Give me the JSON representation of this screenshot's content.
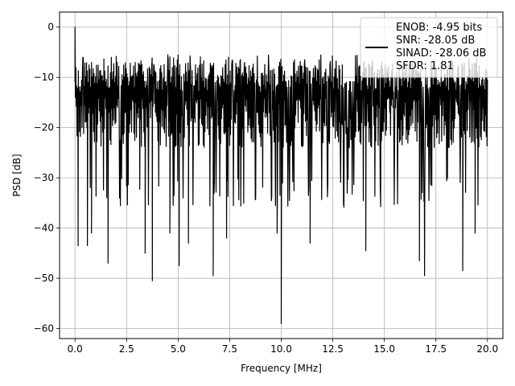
{
  "chart_data": {
    "type": "line",
    "xlabel": "Frequency [MHz]",
    "ylabel": "PSD [dB]",
    "xlim": [
      -0.75,
      20.75
    ],
    "ylim": [
      -62,
      3
    ],
    "xticks": [
      0.0,
      2.5,
      5.0,
      7.5,
      10.0,
      12.5,
      15.0,
      17.5,
      20.0
    ],
    "xtick_labels": [
      "0.0",
      "2.5",
      "5.0",
      "7.5",
      "10.0",
      "12.5",
      "15.0",
      "17.5",
      "20.0"
    ],
    "yticks": [
      0,
      -10,
      -20,
      -30,
      -40,
      -50,
      -60
    ],
    "ytick_labels": [
      "0",
      "−10",
      "−20",
      "−30",
      "−40",
      "−50",
      "−60"
    ],
    "grid": true,
    "legend": {
      "placement": "top-right",
      "lines": [
        "ENOB: -4.95 bits",
        "SNR: -28.05 dB",
        "SINAD: -28.06 dB",
        "SFDR: 1.81"
      ]
    },
    "series": [
      {
        "color": "#000000",
        "x_range": [
          0.0,
          20.0
        ],
        "num_points": 1000,
        "noise_floor_db": -18,
        "upper_envelope_db": -7,
        "lower_envelope_db": -30,
        "peaks": [
          {
            "x": 0.0,
            "y": 0.0
          }
        ],
        "notches": [
          {
            "x": 0.15,
            "y": -43.5
          },
          {
            "x": 0.6,
            "y": -43.5
          },
          {
            "x": 0.8,
            "y": -41.0
          },
          {
            "x": 1.6,
            "y": -47.0
          },
          {
            "x": 3.4,
            "y": -45.0
          },
          {
            "x": 3.75,
            "y": -50.5
          },
          {
            "x": 4.6,
            "y": -41.0
          },
          {
            "x": 5.05,
            "y": -47.5
          },
          {
            "x": 5.5,
            "y": -43.0
          },
          {
            "x": 6.7,
            "y": -49.5
          },
          {
            "x": 7.35,
            "y": -42.0
          },
          {
            "x": 9.8,
            "y": -41.0
          },
          {
            "x": 10.0,
            "y": -59.0
          },
          {
            "x": 11.4,
            "y": -43.0
          },
          {
            "x": 14.1,
            "y": -44.5
          },
          {
            "x": 16.7,
            "y": -46.5
          },
          {
            "x": 16.95,
            "y": -49.5
          },
          {
            "x": 18.8,
            "y": -48.5
          },
          {
            "x": 19.4,
            "y": -41.0
          }
        ]
      }
    ]
  },
  "colors": {
    "line": "#000000",
    "grid": "#b0b0b0",
    "axes": "#000000",
    "legend_bg": "#ffffff",
    "legend_border": "#cccccc"
  }
}
